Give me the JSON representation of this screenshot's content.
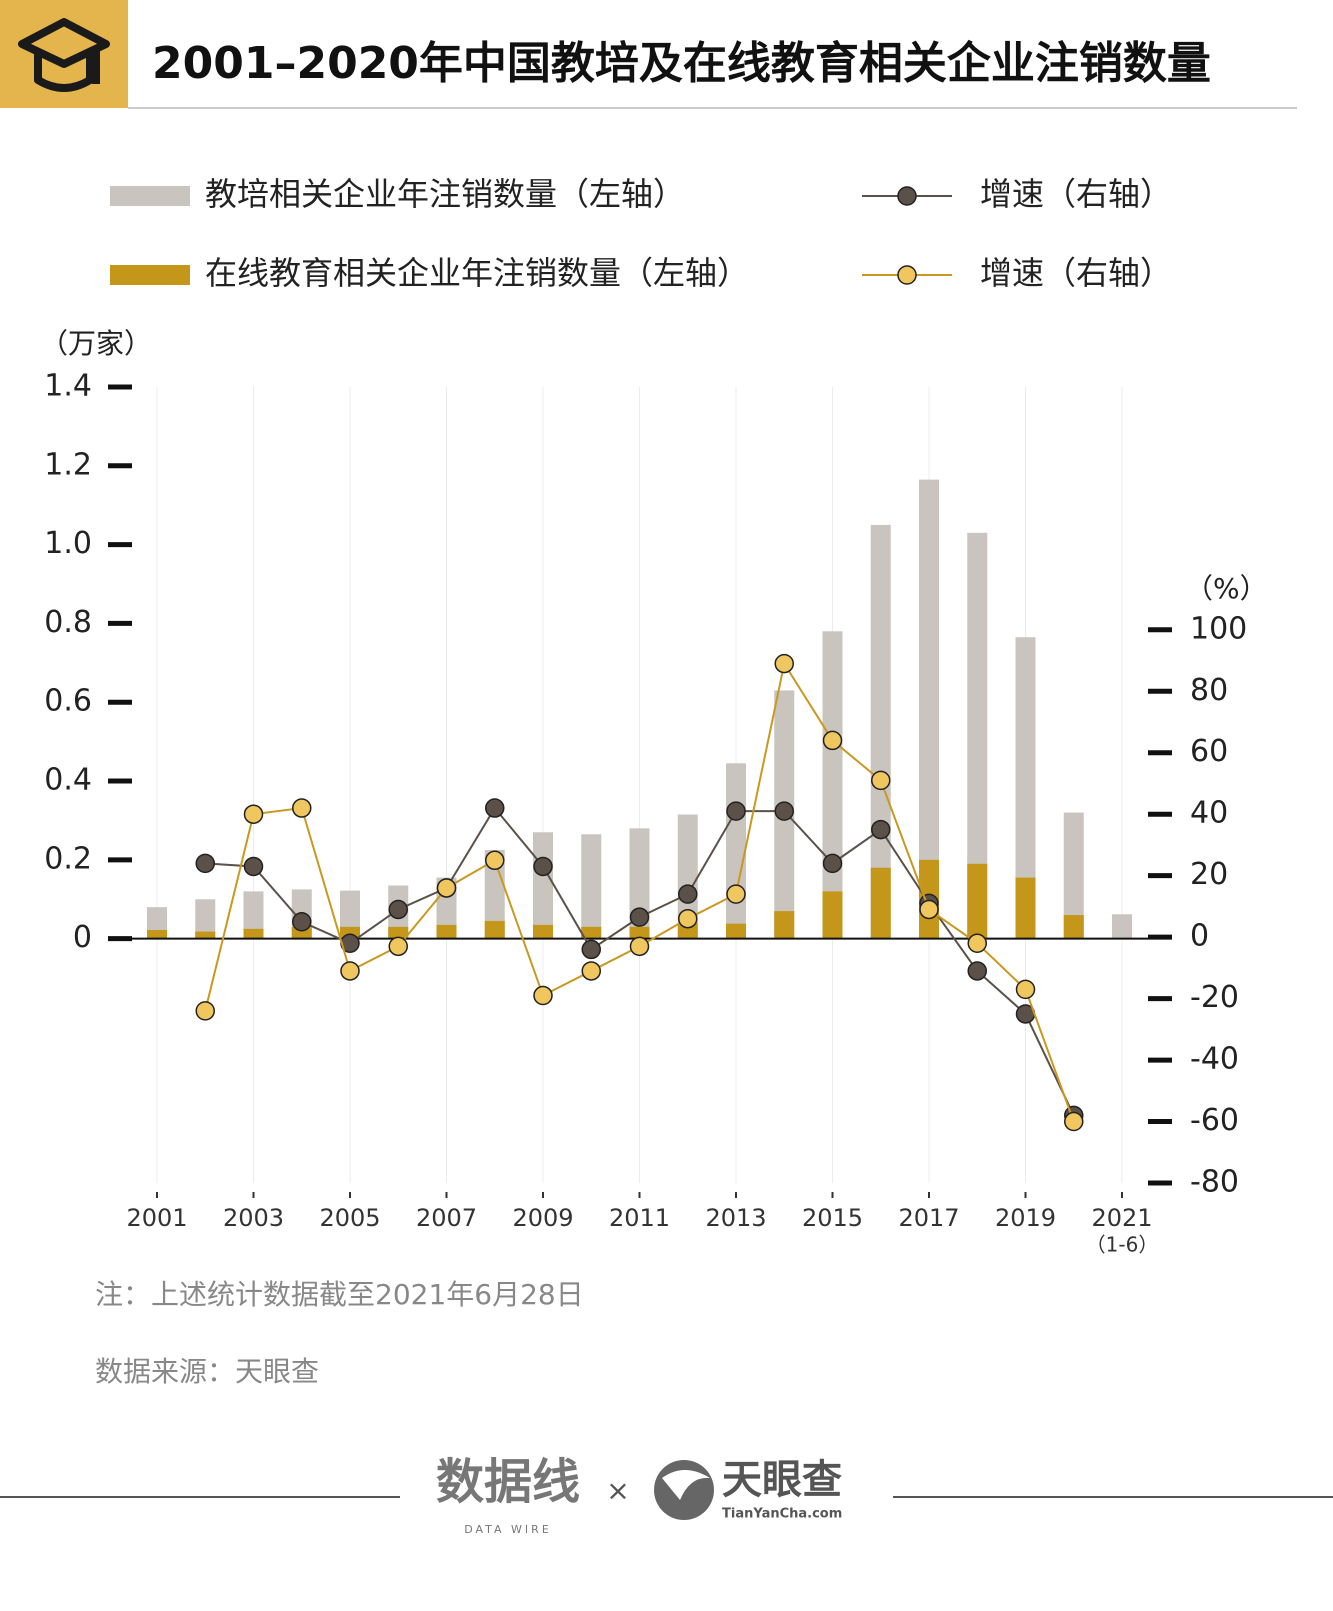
{
  "chart_data": {
    "type": "bar",
    "title": "2001–2020年中国教培及在线教育相关企业注销数量",
    "y_label": "（万家）",
    "y2_label": "（%）",
    "categories": [
      "2001",
      null,
      "2003",
      null,
      "2005",
      null,
      "2007",
      null,
      "2009",
      null,
      "2011",
      null,
      "2013",
      null,
      "2015",
      null,
      "2017",
      null,
      "2019",
      null,
      "2021"
    ],
    "category_note": "（1-6）",
    "ylim": [
      -0.62,
      1.4
    ],
    "yticks": [
      0,
      0.2,
      0.4,
      0.6,
      0.8,
      {
        "value": 1,
        "label": "1.0"
      },
      1.2,
      1.4
    ],
    "y2lim": [
      -80,
      179
    ],
    "y2ticks": [
      -80,
      -60,
      -40,
      -20,
      0,
      20,
      40,
      60,
      80,
      100
    ],
    "grid": true,
    "series": [
      {
        "name": "教培相关企业年注销数量（左轴）",
        "type": "bar",
        "color": "#c9c4be",
        "values": [
          0.08,
          0.1,
          0.12,
          0.125,
          0.122,
          0.135,
          0.155,
          0.225,
          0.27,
          0.265,
          0.28,
          0.315,
          0.445,
          0.63,
          0.78,
          1.05,
          1.165,
          1.03,
          0.765,
          0.32,
          0.062
        ]
      },
      {
        "name": "在线教育相关企业年注销数量（左轴）",
        "type": "bar",
        "color": "#c4961a",
        "values": [
          0.022,
          0.018,
          0.025,
          0.03,
          0.03,
          0.03,
          0.035,
          0.045,
          0.035,
          0.03,
          0.03,
          0.04,
          0.038,
          0.07,
          0.12,
          0.18,
          0.2,
          0.19,
          0.155,
          0.06,
          null
        ]
      },
      {
        "name": "增速（右轴）",
        "type": "line",
        "axis": "y2",
        "color": "#5b5148",
        "marker_color": "#5b5148",
        "values": [
          null,
          24,
          23,
          5,
          -2,
          9,
          16,
          42,
          23,
          -4,
          6.5,
          14,
          41,
          41,
          24,
          35,
          11,
          -11,
          -25,
          -58,
          null
        ]
      },
      {
        "name": "增速（右轴）",
        "type": "line",
        "axis": "y2",
        "color": "#c9981f",
        "marker_color": "#f0c75e",
        "values": [
          null,
          -24,
          40,
          42,
          -11,
          -3,
          16,
          25,
          -19,
          -11,
          -3,
          6,
          14,
          89,
          64,
          51,
          9,
          -2,
          -17,
          -60,
          null
        ]
      }
    ]
  },
  "note": "注：上述统计数据截至2021年6月28日",
  "source": "数据来源：天眼查",
  "footer": {
    "brand1": "数据线",
    "brand1_sub": "DATA WIRE",
    "cross": "×",
    "brand2": "天眼查",
    "brand2_sub": "TianYanCha.com"
  }
}
